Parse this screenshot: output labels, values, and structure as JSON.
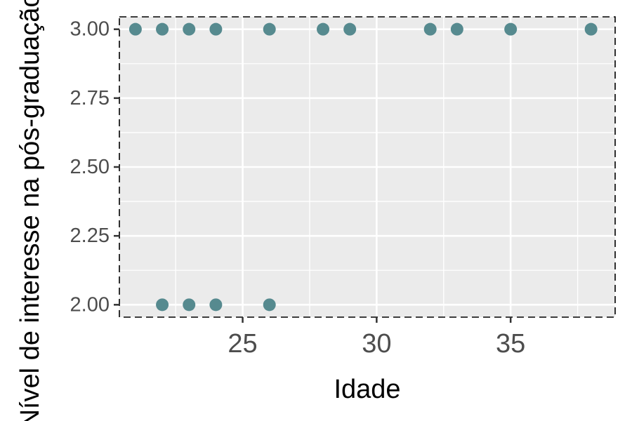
{
  "chart_data": {
    "type": "scatter",
    "title": "",
    "xlabel": "Idade",
    "ylabel": "Nível de interesse na pós-graduação",
    "xlim": [
      20.4,
      38.9
    ],
    "ylim": [
      1.955,
      3.045
    ],
    "x_ticks": [
      25,
      30,
      35
    ],
    "x_tick_labels": [
      "25",
      "30",
      "35"
    ],
    "y_ticks": [
      2.0,
      2.25,
      2.5,
      2.75,
      3.0
    ],
    "y_tick_labels": [
      "2.00",
      "2.25",
      "2.50",
      "2.75",
      "3.00"
    ],
    "grid": true,
    "legend": "none",
    "panel_border": "dashed",
    "colors": {
      "point": "#568a8f",
      "panel_background": "#ebebeb",
      "grid": "#ffffff",
      "border": "#000000"
    },
    "points": [
      {
        "x": 21,
        "y": 3
      },
      {
        "x": 22,
        "y": 3
      },
      {
        "x": 23,
        "y": 3
      },
      {
        "x": 24,
        "y": 3
      },
      {
        "x": 26,
        "y": 3
      },
      {
        "x": 28,
        "y": 3
      },
      {
        "x": 29,
        "y": 3
      },
      {
        "x": 32,
        "y": 3
      },
      {
        "x": 33,
        "y": 3
      },
      {
        "x": 35,
        "y": 3
      },
      {
        "x": 38,
        "y": 3
      },
      {
        "x": 22,
        "y": 2
      },
      {
        "x": 23,
        "y": 2
      },
      {
        "x": 24,
        "y": 2
      },
      {
        "x": 26,
        "y": 2
      }
    ]
  }
}
